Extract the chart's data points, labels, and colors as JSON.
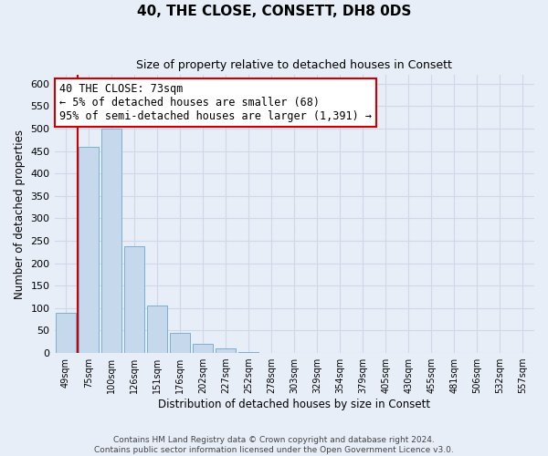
{
  "title": "40, THE CLOSE, CONSETT, DH8 0DS",
  "subtitle": "Size of property relative to detached houses in Consett",
  "xlabel": "Distribution of detached houses by size in Consett",
  "ylabel": "Number of detached properties",
  "bin_labels": [
    "49sqm",
    "75sqm",
    "100sqm",
    "126sqm",
    "151sqm",
    "176sqm",
    "202sqm",
    "227sqm",
    "252sqm",
    "278sqm",
    "303sqm",
    "329sqm",
    "354sqm",
    "379sqm",
    "405sqm",
    "430sqm",
    "455sqm",
    "481sqm",
    "506sqm",
    "532sqm",
    "557sqm"
  ],
  "bar_heights": [
    90,
    460,
    500,
    237,
    105,
    45,
    20,
    10,
    2,
    1,
    0,
    0,
    0,
    0,
    0,
    0,
    0,
    0,
    1,
    0,
    1
  ],
  "bar_color": "#c5d8ec",
  "bar_edge_color": "#7aafd4",
  "red_line_x": 0.5,
  "red_line_color": "#cc0000",
  "annotation_text": "40 THE CLOSE: 73sqm\n← 5% of detached houses are smaller (68)\n95% of semi-detached houses are larger (1,391) →",
  "annotation_box_color": "#ffffff",
  "annotation_box_edge_color": "#cc0000",
  "ylim": [
    0,
    620
  ],
  "yticks": [
    0,
    50,
    100,
    150,
    200,
    250,
    300,
    350,
    400,
    450,
    500,
    550,
    600
  ],
  "background_color": "#e8eef8",
  "grid_color": "#d0d8e8",
  "footer_line1": "Contains HM Land Registry data © Crown copyright and database right 2024.",
  "footer_line2": "Contains public sector information licensed under the Open Government Licence v3.0."
}
